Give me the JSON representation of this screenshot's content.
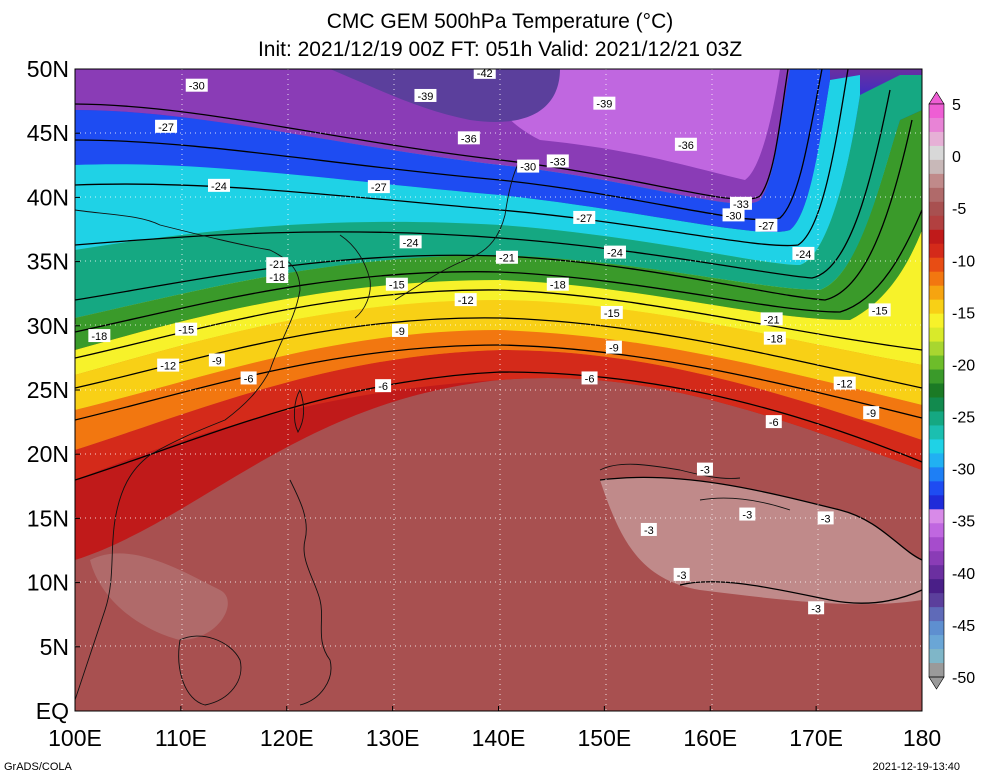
{
  "title": {
    "line1": "CMC GEM 500hPa Temperature (°C)",
    "line2": "Init: 2021/12/19 00Z  FT: 051h  Valid: 2021/12/21 03Z"
  },
  "axes": {
    "lat_labels": [
      "EQ",
      "5N",
      "10N",
      "15N",
      "20N",
      "25N",
      "30N",
      "35N",
      "40N",
      "45N",
      "50N"
    ],
    "lon_labels": [
      "100E",
      "110E",
      "120E",
      "130E",
      "140E",
      "150E",
      "160E",
      "170E",
      "180"
    ]
  },
  "colorbar": {
    "labels": [
      "5",
      "0",
      "-5",
      "-10",
      "-15",
      "-20",
      "-25",
      "-30",
      "-35",
      "-40",
      "-45",
      "-50"
    ],
    "colors": [
      "#9a9a9a",
      "#7fb6c8",
      "#6aa6d6",
      "#5e8fd0",
      "#5f6ab8",
      "#5b3f9c",
      "#4a1f88",
      "#6b2fa0",
      "#8a3cb6",
      "#a64ccc",
      "#c067e0",
      "#d88ae8",
      "#1f2bd9",
      "#1e4cf2",
      "#1e7ff5",
      "#21b0f2",
      "#1fd2e6",
      "#1bbfb0",
      "#15a882",
      "#128a4e",
      "#1b7a25",
      "#3a9a2a",
      "#6dbd2a",
      "#a8d630",
      "#d9ea2a",
      "#f7f22a",
      "#f8d016",
      "#f6a410",
      "#f27710",
      "#e84d14",
      "#d42a1a",
      "#c01a1a",
      "#b24040",
      "#a85050",
      "#b06a6a",
      "#c08a8a",
      "#c8b8b8",
      "#d8d8d8",
      "#e6b0d6",
      "#e883d6",
      "#ee5ed4"
    ]
  },
  "contour_labels": [
    {
      "text": "-42",
      "lon": 138.7,
      "lat": 49.7
    },
    {
      "text": "-30",
      "lon": 111.5,
      "lat": 48.7
    },
    {
      "text": "-39",
      "lon": 133.1,
      "lat": 47.9
    },
    {
      "text": "-39",
      "lon": 150.0,
      "lat": 47.3
    },
    {
      "text": "-27",
      "lon": 108.6,
      "lat": 45.5
    },
    {
      "text": "-36",
      "lon": 137.2,
      "lat": 44.6
    },
    {
      "text": "-36",
      "lon": 157.7,
      "lat": 44.1
    },
    {
      "text": "-33",
      "lon": 145.6,
      "lat": 42.8
    },
    {
      "text": "-30",
      "lon": 142.8,
      "lat": 42.4
    },
    {
      "text": "-27",
      "lon": 128.7,
      "lat": 40.8
    },
    {
      "text": "-24",
      "lon": 113.6,
      "lat": 40.9
    },
    {
      "text": "-33",
      "lon": 162.9,
      "lat": 39.5
    },
    {
      "text": "-30",
      "lon": 162.2,
      "lat": 38.6
    },
    {
      "text": "-27",
      "lon": 148.1,
      "lat": 38.4
    },
    {
      "text": "-27",
      "lon": 165.3,
      "lat": 37.8
    },
    {
      "text": "-24",
      "lon": 131.7,
      "lat": 36.5
    },
    {
      "text": "-24",
      "lon": 151.0,
      "lat": 35.7
    },
    {
      "text": "-24",
      "lon": 168.8,
      "lat": 35.6
    },
    {
      "text": "-21",
      "lon": 140.8,
      "lat": 35.3
    },
    {
      "text": "-21",
      "lon": 119.1,
      "lat": 34.8
    },
    {
      "text": "-18",
      "lon": 119.1,
      "lat": 33.8
    },
    {
      "text": "-15",
      "lon": 130.4,
      "lat": 33.2
    },
    {
      "text": "-18",
      "lon": 145.6,
      "lat": 33.2
    },
    {
      "text": "-12",
      "lon": 136.9,
      "lat": 32.0
    },
    {
      "text": "-15",
      "lon": 150.7,
      "lat": 31.0
    },
    {
      "text": "-21",
      "lon": 165.8,
      "lat": 30.5
    },
    {
      "text": "-15",
      "lon": 176.0,
      "lat": 31.2
    },
    {
      "text": "-9",
      "lon": 130.7,
      "lat": 29.6
    },
    {
      "text": "-15",
      "lon": 110.5,
      "lat": 29.7
    },
    {
      "text": "-18",
      "lon": 102.3,
      "lat": 29.2
    },
    {
      "text": "-18",
      "lon": 166.1,
      "lat": 29.0
    },
    {
      "text": "-9",
      "lon": 150.9,
      "lat": 28.3
    },
    {
      "text": "-9",
      "lon": 113.4,
      "lat": 27.3
    },
    {
      "text": "-12",
      "lon": 108.8,
      "lat": 26.9
    },
    {
      "text": "-6",
      "lon": 116.4,
      "lat": 25.9
    },
    {
      "text": "-6",
      "lon": 148.6,
      "lat": 25.9
    },
    {
      "text": "-6",
      "lon": 129.1,
      "lat": 25.3
    },
    {
      "text": "-12",
      "lon": 172.7,
      "lat": 25.5
    },
    {
      "text": "-9",
      "lon": 175.2,
      "lat": 23.2
    },
    {
      "text": "-6",
      "lon": 166.0,
      "lat": 22.5
    },
    {
      "text": "-3",
      "lon": 159.5,
      "lat": 18.8
    },
    {
      "text": "-3",
      "lon": 163.5,
      "lat": 15.3
    },
    {
      "text": "-3",
      "lon": 170.9,
      "lat": 15.0
    },
    {
      "text": "-3",
      "lon": 154.2,
      "lat": 14.1
    },
    {
      "text": "-3",
      "lon": 157.3,
      "lat": 10.6
    },
    {
      "text": "-3",
      "lon": 170.0,
      "lat": 8.0
    }
  ],
  "footer": {
    "left": "GrADS/COLA",
    "right": "2021-12-19-13:40"
  }
}
